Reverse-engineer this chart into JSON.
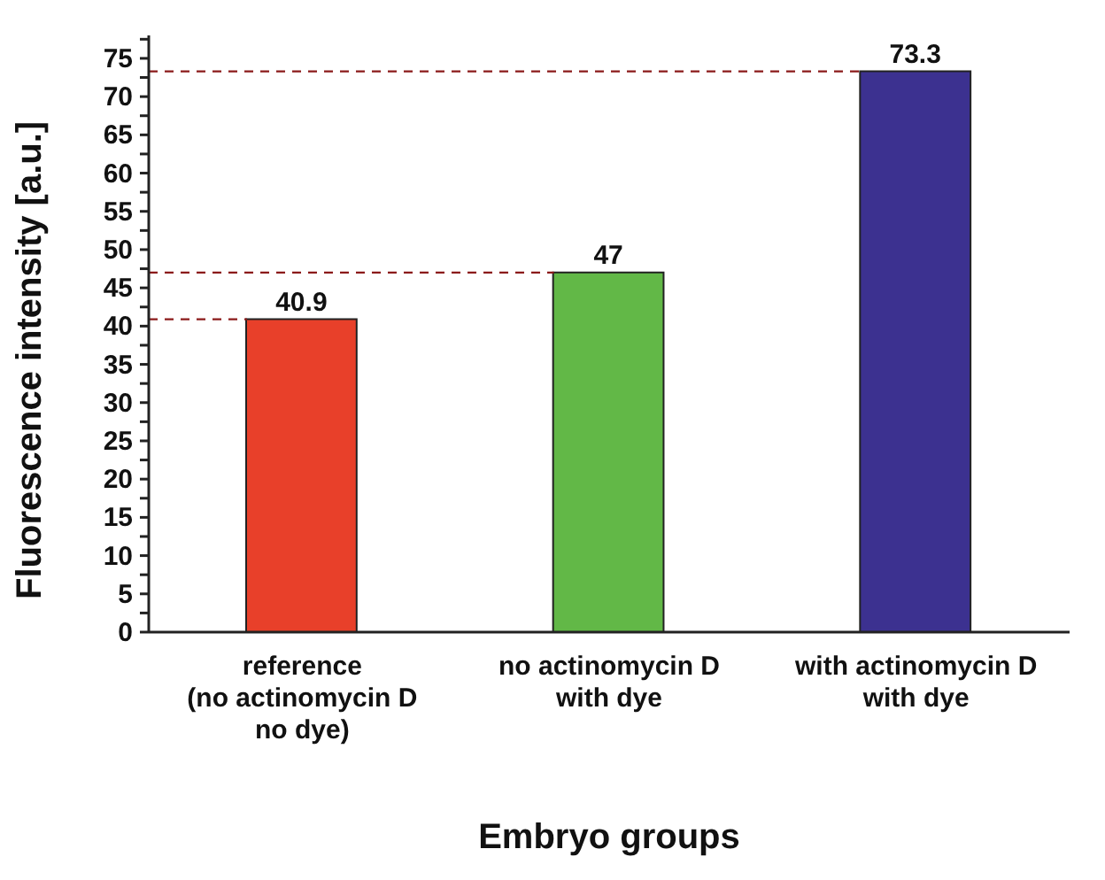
{
  "chart_data": {
    "type": "bar",
    "xlabel": "Embryo groups",
    "ylabel": "Fluorescence intensity [a.u.]",
    "categories": [
      "reference\n(no actinomycin D\nno dye)",
      "no actinomycin D\nwith dye",
      "with actinomycin D\nwith dye"
    ],
    "values": [
      40.9,
      47,
      73.3
    ],
    "colors": [
      "#e8402a",
      "#62b847",
      "#3c3190"
    ],
    "data_labels": true,
    "ylim": [
      0,
      78
    ],
    "yticks": [
      0,
      {
        "value": 2.5,
        "label": null
      },
      5,
      {
        "value": 7.5,
        "label": null
      },
      10,
      {
        "value": 12.5,
        "label": null
      },
      15,
      {
        "value": 17.5,
        "label": null
      },
      20,
      {
        "value": 22.5,
        "label": null
      },
      25,
      {
        "value": 27.5,
        "label": null
      },
      30,
      {
        "value": 32.5,
        "label": null
      },
      35,
      {
        "value": 37.5,
        "label": null
      },
      40,
      {
        "value": 42.5,
        "label": null
      },
      45,
      {
        "value": 47.5,
        "label": null
      },
      50,
      {
        "value": 52.5,
        "label": null
      },
      55,
      {
        "value": 57.5,
        "label": null
      },
      60,
      {
        "value": 62.5,
        "label": null
      },
      65,
      {
        "value": 67.5,
        "label": null
      },
      70,
      {
        "value": 72.5,
        "label": null
      },
      75,
      {
        "value": 77.5,
        "label": null
      }
    ],
    "ref_lines": [
      {
        "axis": "y",
        "value": 40.9,
        "line_style": "dashed",
        "color": "#8b1a1a"
      },
      {
        "axis": "y",
        "value": 47,
        "line_style": "dashed",
        "color": "#8b1a1a"
      },
      {
        "axis": "y",
        "value": 73.3,
        "line_style": "dashed",
        "color": "#8b1a1a"
      }
    ],
    "grid": false,
    "legend": false
  }
}
